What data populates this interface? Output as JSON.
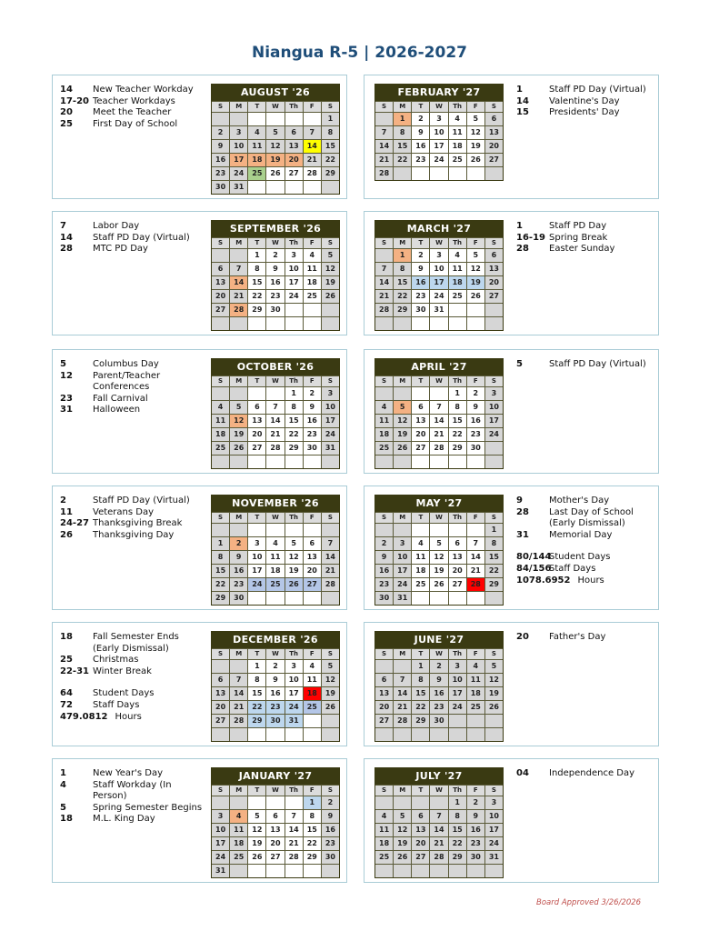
{
  "title": "Niangua R-5 | 2026-2027",
  "footer": "Board Approved 3/26/2026",
  "dow": [
    "S",
    "M",
    "T",
    "W",
    "Th",
    "F",
    "S"
  ],
  "colors": {
    "orange": "#f4b183",
    "yellow": "#ffff00",
    "green": "#a9d08e",
    "blue": "#bdd7ee",
    "blue2": "#b4c6e7",
    "red": "#ff0000",
    "gray": "#d6d6d6",
    "header": "#3a3a12",
    "title": "#1f4e79"
  },
  "months": [
    {
      "name": "AUGUST '26",
      "start": 6,
      "days": 31,
      "white_from": 25,
      "hl": {
        "14": "yellow",
        "17": "orange",
        "18": "orange",
        "19": "orange",
        "20": "orange",
        "25": "green"
      },
      "events": [
        {
          "d": "14",
          "l": "New Teacher Workday"
        },
        {
          "d": "17-20",
          "l": "Teacher Workdays"
        },
        {
          "d": "20",
          "l": "Meet the Teacher"
        },
        {
          "d": "25",
          "l": "First Day of School"
        }
      ]
    },
    {
      "name": "SEPTEMBER '26",
      "start": 2,
      "days": 30,
      "hl": {
        "14": "orange",
        "28": "orange"
      },
      "events": [
        {
          "d": "7",
          "l": "Labor Day"
        },
        {
          "d": "14",
          "l": "Staff PD Day (Virtual)"
        },
        {
          "d": "28",
          "l": "MTC PD Day"
        }
      ]
    },
    {
      "name": "OCTOBER '26",
      "start": 4,
      "days": 31,
      "hl": {
        "12": "orange"
      },
      "events": [
        {
          "d": "5",
          "l": "Columbus Day"
        },
        {
          "d": "12",
          "l": "Parent/Teacher\nConferences"
        },
        {
          "d": "23",
          "l": "Fall Carnival"
        },
        {
          "d": "31",
          "l": "Halloween"
        }
      ]
    },
    {
      "name": "NOVEMBER '26",
      "start": 0,
      "days": 30,
      "lead_blank": true,
      "hl": {
        "2": "orange",
        "24": "blue2",
        "25": "blue2",
        "26": "blue2",
        "27": "blue2"
      },
      "events": [
        {
          "d": "2",
          "l": "Staff PD Day (Virtual)"
        },
        {
          "d": "11",
          "l": "Veterans Day"
        },
        {
          "d": "24-27",
          "l": "Thanksgiving Break"
        },
        {
          "d": "26",
          "l": "Thanksgiving Day"
        }
      ]
    },
    {
      "name": "DECEMBER '26",
      "start": 2,
      "days": 31,
      "hl": {
        "18": "red",
        "22": "blue",
        "23": "blue",
        "24": "blue",
        "25": "blue2",
        "29": "blue",
        "30": "blue",
        "31": "blue"
      },
      "events": [
        {
          "d": "18",
          "l": "Fall Semester Ends\n(Early Dismissal)"
        },
        {
          "d": "25",
          "l": "Christmas"
        },
        {
          "d": "22-31",
          "l": "Winter Break"
        }
      ],
      "extra": [
        {
          "d": "64",
          "l": "Student Days"
        },
        {
          "d": "72",
          "l": "Staff Days"
        },
        {
          "d": "479.0812",
          "l": "Hours"
        }
      ]
    },
    {
      "name": "JANUARY '27",
      "start": 5,
      "days": 31,
      "hl": {
        "1": "blue",
        "4": "orange"
      },
      "events": [
        {
          "d": "1",
          "l": "New Year's Day"
        },
        {
          "d": "4",
          "l": "Staff Workday (In\nPerson)"
        },
        {
          "d": "5",
          "l": "Spring Semester Begins"
        },
        {
          "d": "18",
          "l": "M.L. King Day"
        }
      ]
    },
    {
      "name": "FEBRUARY '27",
      "start": 1,
      "days": 28,
      "hl": {
        "1": "orange"
      },
      "events": [
        {
          "d": "1",
          "l": "Staff PD Day (Virtual)"
        },
        {
          "d": "14",
          "l": "Valentine's Day"
        },
        {
          "d": "15",
          "l": "Presidents' Day"
        }
      ]
    },
    {
      "name": "MARCH '27",
      "start": 1,
      "days": 31,
      "hl": {
        "1": "orange",
        "16": "blue",
        "17": "blue",
        "18": "blue",
        "19": "blue"
      },
      "events": [
        {
          "d": "1",
          "l": "Staff PD Day"
        },
        {
          "d": "16-19",
          "l": "Spring Break"
        },
        {
          "d": "28",
          "l": "Easter Sunday"
        }
      ]
    },
    {
      "name": "APRIL '27",
      "start": 4,
      "days": 30,
      "hl": {
        "5": "orange"
      },
      "events": [
        {
          "d": "5",
          "l": "Staff PD Day (Virtual)"
        }
      ]
    },
    {
      "name": "MAY '27",
      "start": 6,
      "days": 31,
      "white_to": 27,
      "hl": {
        "28": "red"
      },
      "events": [
        {
          "d": "9",
          "l": "Mother's Day"
        },
        {
          "d": "28",
          "l": "Last Day of School\n(Early Dismissal)"
        },
        {
          "d": "31",
          "l": "Memorial Day"
        }
      ],
      "extra": [
        {
          "d": "80/144",
          "l": "Student Days"
        },
        {
          "d": "84/156",
          "l": "Staff Days"
        },
        {
          "d": "1078.6952",
          "l": "Hours"
        }
      ]
    },
    {
      "name": "JUNE '27",
      "start": 2,
      "days": 30,
      "all_gray": true,
      "hl": {},
      "events": [
        {
          "d": "20",
          "l": "Father's Day"
        }
      ]
    },
    {
      "name": "JULY '27",
      "start": 4,
      "days": 31,
      "all_gray": true,
      "hl": {},
      "events": [
        {
          "d": "04",
          "l": "Independence Day"
        }
      ]
    }
  ]
}
